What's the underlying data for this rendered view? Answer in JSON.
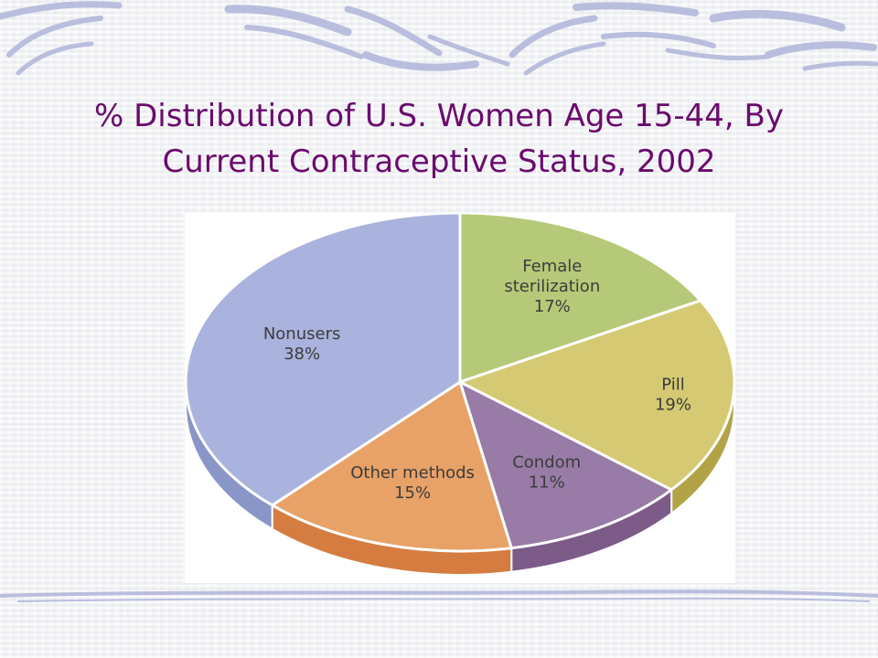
{
  "slide": {
    "title_line1": "% Distribution of U.S. Women Age 15-44, By",
    "title_line2": "Current Contraceptive Status, 2002"
  },
  "theme": {
    "title_color": "#6a0a6e",
    "decoration_color": "#b9bede"
  },
  "chart_data": {
    "type": "pie",
    "title": "% Distribution of U.S. Women Age 15-44, By Current Contraceptive Status, 2002",
    "three_d": true,
    "start": "12 o'clock",
    "direction": "clockwise",
    "slices": [
      {
        "id": "female-sterilization",
        "label_lines": [
          "Female",
          "sterilization"
        ],
        "pct_label": "17%",
        "value": 17,
        "color": "#b6c979",
        "side": "#8fa252"
      },
      {
        "id": "pill",
        "label_lines": [
          "Pill"
        ],
        "pct_label": "19%",
        "value": 19,
        "color": "#d5c973",
        "side": "#b3a347"
      },
      {
        "id": "condom",
        "label_lines": [
          "Condom"
        ],
        "pct_label": "11%",
        "value": 11,
        "color": "#987ba6",
        "side": "#7c5b89"
      },
      {
        "id": "other-methods",
        "label_lines": [
          "Other  methods"
        ],
        "pct_label": "15%",
        "value": 15,
        "color": "#e8a267",
        "side": "#d57c41"
      },
      {
        "id": "nonusers",
        "label_lines": [
          "Nonusers"
        ],
        "pct_label": "38%",
        "value": 38,
        "color": "#a9b3dd",
        "side": "#8a95c8"
      }
    ]
  }
}
